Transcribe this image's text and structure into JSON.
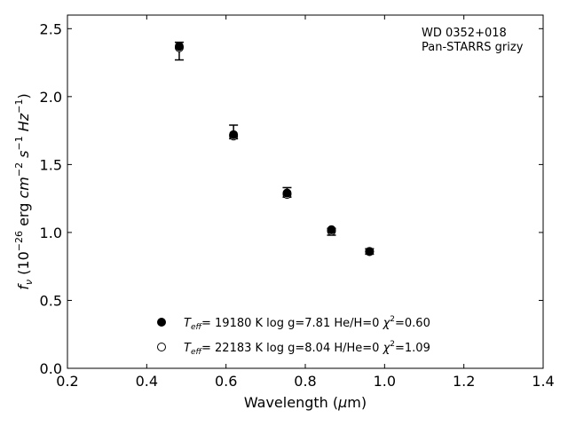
{
  "chart_data": {
    "type": "scatter",
    "xlabel_parts": {
      "text": "Wavelength (",
      "mu": "μ",
      "unit": "m)"
    },
    "ylabel_parts": {
      "f": "f",
      "nu": "ν",
      "open": " (10",
      "exp1": "−26",
      "erg": " erg ",
      "cm": "cm",
      "exp2": "−2",
      "s": " s",
      "exp3": "−1",
      "hz": " Hz",
      "exp4": "−1",
      "close": ")"
    },
    "xlim": [
      0.2,
      1.4
    ],
    "ylim": [
      0.0,
      2.6
    ],
    "xticks": [
      "0.2",
      "0.4",
      "0.6",
      "0.8",
      "1.0",
      "1.2",
      "1.4"
    ],
    "yticks": [
      "0.0",
      "0.5",
      "1.0",
      "1.5",
      "2.0",
      "2.5"
    ],
    "annotation": [
      "WD 0352+018",
      "Pan-STARRS grizy"
    ],
    "series": [
      {
        "marker": "filled",
        "points": [
          {
            "x": 0.482,
            "y": 2.37,
            "ylo": 2.27,
            "yhi": 2.4
          },
          {
            "x": 0.619,
            "y": 1.72,
            "ylo": 1.69,
            "yhi": 1.79
          },
          {
            "x": 0.754,
            "y": 1.29,
            "ylo": 1.26,
            "yhi": 1.33
          },
          {
            "x": 0.866,
            "y": 1.02,
            "ylo": 0.98,
            "yhi": 1.03
          },
          {
            "x": 0.962,
            "y": 0.86,
            "ylo": 0.84,
            "yhi": 0.88
          }
        ]
      },
      {
        "marker": "open",
        "points": [
          {
            "x": 0.482,
            "y": 2.36
          },
          {
            "x": 0.619,
            "y": 1.71
          },
          {
            "x": 0.754,
            "y": 1.28
          },
          {
            "x": 0.866,
            "y": 1.01
          },
          {
            "x": 0.962,
            "y": 0.86
          }
        ]
      }
    ],
    "legend": [
      {
        "marker": "filled",
        "t": "T",
        "eff": "eff",
        "teff_val": "= 19180 K  log g=7.81  He/H=0  ",
        "chi": "χ",
        "chi_exp": "2",
        "chi_val": "=0.60"
      },
      {
        "marker": "open",
        "t": "T",
        "eff": "eff",
        "teff_val": "= 22183 K  log g=8.04  H/He=0  ",
        "chi": "χ",
        "chi_exp": "2",
        "chi_val": "=1.09"
      }
    ]
  }
}
